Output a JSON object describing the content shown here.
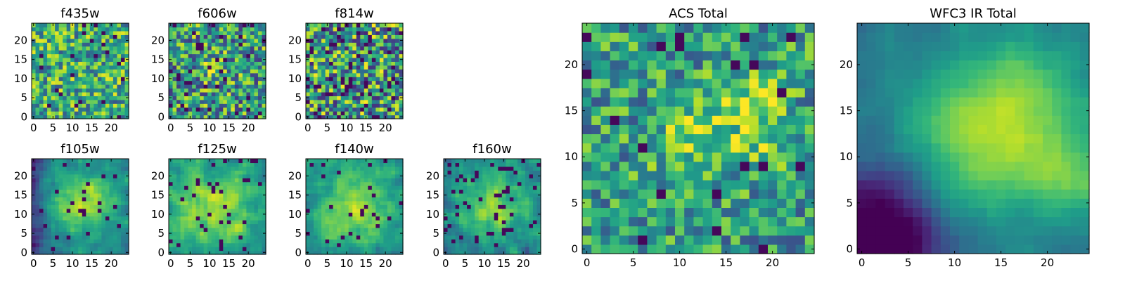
{
  "figure": {
    "type": "heatmap",
    "colormap": "viridis",
    "grid_size": 25
  },
  "chart_data": [
    {
      "type": "heatmap",
      "title": "f435w",
      "xticks": [
        "0",
        "5",
        "10",
        "15",
        "20"
      ],
      "yticks": [
        "0",
        "5",
        "10",
        "15",
        "20"
      ],
      "xlim": [
        0,
        24
      ],
      "ylim": [
        0,
        24
      ],
      "character": "uniform noise, no clear source"
    },
    {
      "type": "heatmap",
      "title": "f606w",
      "xticks": [
        "0",
        "5",
        "10",
        "15",
        "20"
      ],
      "yticks": [
        "0",
        "5",
        "10",
        "15",
        "20"
      ],
      "xlim": [
        0,
        24
      ],
      "ylim": [
        0,
        24
      ],
      "character": "noise with faint bright spot near (11,13)"
    },
    {
      "type": "heatmap",
      "title": "f814w",
      "xticks": [
        "0",
        "5",
        "10",
        "15",
        "20"
      ],
      "yticks": [
        "0",
        "5",
        "10",
        "15",
        "20"
      ],
      "xlim": [
        0,
        24
      ],
      "ylim": [
        0,
        24
      ],
      "character": "noise with many dark pixels"
    },
    {
      "type": "heatmap",
      "title": "f105w",
      "xticks": [
        "0",
        "5",
        "10",
        "15",
        "20"
      ],
      "yticks": [
        "0",
        "5",
        "10",
        "15",
        "20"
      ],
      "xlim": [
        0,
        24
      ],
      "ylim": [
        0,
        24
      ],
      "character": "bright extended source centered near (13,13), dark left edge"
    },
    {
      "type": "heatmap",
      "title": "f125w",
      "xticks": [
        "0",
        "5",
        "10",
        "15",
        "20"
      ],
      "yticks": [
        "0",
        "5",
        "10",
        "15",
        "20"
      ],
      "xlim": [
        0,
        24
      ],
      "ylim": [
        0,
        24
      ],
      "character": "bright diffuse emission, dark patches at edges"
    },
    {
      "type": "heatmap",
      "title": "f140w",
      "xticks": [
        "0",
        "5",
        "10",
        "15",
        "20"
      ],
      "yticks": [
        "0",
        "5",
        "10",
        "15",
        "20"
      ],
      "xlim": [
        0,
        24
      ],
      "ylim": [
        0,
        24
      ],
      "character": "bright diffuse emission centered"
    },
    {
      "type": "heatmap",
      "title": "f160w",
      "xticks": [
        "0",
        "5",
        "10",
        "15",
        "20"
      ],
      "yticks": [
        "0",
        "5",
        "10",
        "15",
        "20"
      ],
      "xlim": [
        0,
        24
      ],
      "ylim": [
        0,
        24
      ],
      "character": "bright center with dark pixels at lower left"
    },
    {
      "type": "heatmap",
      "title": "ACS Total",
      "xticks": [
        "0",
        "5",
        "10",
        "15",
        "20"
      ],
      "yticks": [
        "0",
        "5",
        "10",
        "15",
        "20"
      ],
      "xlim": [
        0,
        24
      ],
      "ylim": [
        0,
        24
      ],
      "character": "blocky noise, bright clumps near (12,12) and (18,16)"
    },
    {
      "type": "heatmap",
      "title": "WFC3 IR Total",
      "xticks": [
        "0",
        "5",
        "10",
        "15",
        "20"
      ],
      "yticks": [
        "0",
        "5",
        "10",
        "15",
        "20"
      ],
      "xlim": [
        0,
        24
      ],
      "ylim": [
        0,
        24
      ],
      "character": "smooth bright source centered near (14,12), dark lower-left corner"
    }
  ]
}
